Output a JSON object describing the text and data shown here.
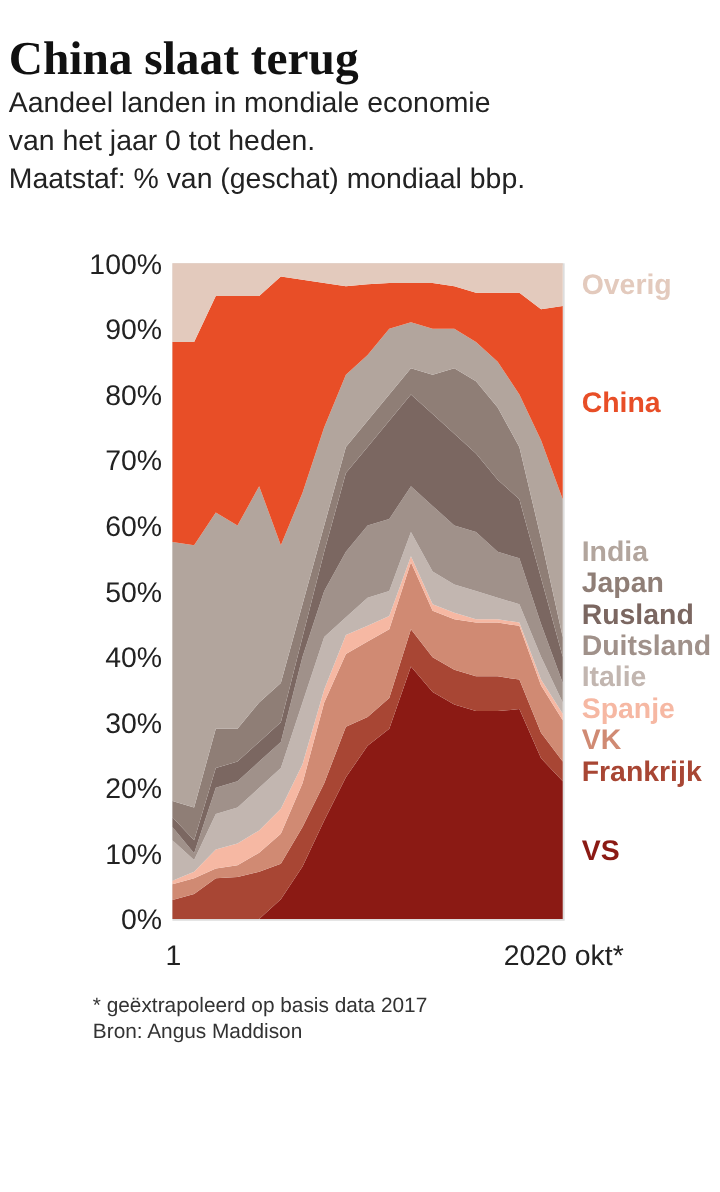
{
  "chart_data": {
    "type": "area",
    "stacked": true,
    "title": "China slaat terug",
    "subtitle": "Aandeel landen in mondiale economie\nvan het jaar 0 tot heden.\nMaatstaf: % van (geschat) mondiaal bbp.",
    "categories": [
      "1",
      null,
      null,
      null,
      null,
      null,
      null,
      null,
      null,
      null,
      null,
      null,
      null,
      null,
      null,
      null,
      null,
      null,
      "2020 okt*"
    ],
    "series": [
      {
        "name": "VS",
        "color": "#8b1a14",
        "values": [
          0,
          0,
          0,
          0,
          0,
          3,
          8,
          15,
          21.6,
          26.4,
          29,
          38.5,
          34.6,
          32.7,
          31.7,
          31.7,
          32,
          24.5,
          21
        ]
      },
      {
        "name": "Frankrijk",
        "color": "#a84634",
        "values": [
          2.9,
          3.8,
          6.2,
          6.4,
          7.2,
          5.4,
          6,
          5.7,
          7.7,
          4.4,
          4.7,
          5.7,
          5.3,
          5.3,
          5.3,
          5.3,
          4.5,
          3.9,
          3
        ]
      },
      {
        "name": "VK",
        "color": "#d08a73",
        "values": [
          2.4,
          2.4,
          1.5,
          1.8,
          2.9,
          4.6,
          6.7,
          12.3,
          11.1,
          11.5,
          10.5,
          10.2,
          7.1,
          7.7,
          8.2,
          8.2,
          8.2,
          7.2,
          6.3
        ]
      },
      {
        "name": "Spanje",
        "color": "#f6b8a3",
        "values": [
          0.5,
          1,
          2.9,
          3.3,
          3.4,
          3.8,
          2.9,
          2,
          2.9,
          2.4,
          2,
          0.9,
          1,
          1,
          0.5,
          0.5,
          0.5,
          0.9,
          1
        ]
      },
      {
        "name": "Italie",
        "color": "#c2b6b0",
        "values": [
          6.2,
          1.8,
          5.4,
          5.5,
          6.5,
          6.2,
          9.4,
          8,
          2.7,
          4.3,
          3.8,
          3.7,
          5,
          4.3,
          4.3,
          3.3,
          2.8,
          3.5,
          1.7
        ]
      },
      {
        "name": "Duitsland",
        "color": "#a0918a",
        "values": [
          2,
          1,
          4,
          4,
          4,
          4,
          7,
          7,
          10,
          11,
          11,
          7,
          10,
          9,
          9,
          7,
          7,
          5,
          3
        ]
      },
      {
        "name": "Rusland",
        "color": "#7b6761",
        "values": [
          1.5,
          2,
          3,
          3,
          3,
          3,
          3,
          6,
          12,
          12,
          15,
          14,
          14,
          14,
          12,
          11,
          9,
          7,
          4
        ]
      },
      {
        "name": "Japan",
        "color": "#8f7e76",
        "values": [
          2.5,
          5,
          6,
          5,
          6,
          6,
          5,
          4,
          4,
          4,
          4,
          4,
          6,
          10,
          11,
          11,
          8,
          6,
          3
        ]
      },
      {
        "name": "India",
        "color": "#b2a59d",
        "values": [
          39.5,
          40,
          33,
          31,
          33,
          21,
          17,
          15,
          11,
          10,
          10,
          7,
          7,
          6,
          6,
          7,
          8,
          15,
          21
        ]
      },
      {
        "name": "China",
        "color": "#e84e27",
        "values": [
          30.5,
          31,
          33,
          35,
          29,
          41,
          32.5,
          22,
          13.5,
          10.8,
          7,
          6,
          7,
          6.5,
          7.5,
          10.5,
          15.5,
          20,
          29.5
        ]
      },
      {
        "name": "Overig",
        "color": "#e3cabd",
        "values": [
          12,
          12,
          5,
          5,
          5,
          2,
          2.5,
          3,
          3.5,
          3.2,
          3,
          3,
          3,
          3.5,
          4.5,
          4.5,
          4.5,
          7,
          6.5
        ]
      }
    ],
    "ylim": [
      0,
      100
    ],
    "yticks": [
      {
        "value": 0,
        "label": "0%"
      },
      {
        "value": 10,
        "label": "10%"
      },
      {
        "value": 20,
        "label": "20%"
      },
      {
        "value": 30,
        "label": "30%"
      },
      {
        "value": 40,
        "label": "40%"
      },
      {
        "value": 50,
        "label": "50%"
      },
      {
        "value": 60,
        "label": "60%"
      },
      {
        "value": 70,
        "label": "70%"
      },
      {
        "value": 80,
        "label": "80%"
      },
      {
        "value": 90,
        "label": "90%"
      },
      {
        "value": 100,
        "label": "100%"
      }
    ],
    "annotations": [
      "* geëxtrapoleerd op basis data 2017",
      "Bron: Angus Maddison"
    ],
    "legend": false,
    "grid": false
  }
}
